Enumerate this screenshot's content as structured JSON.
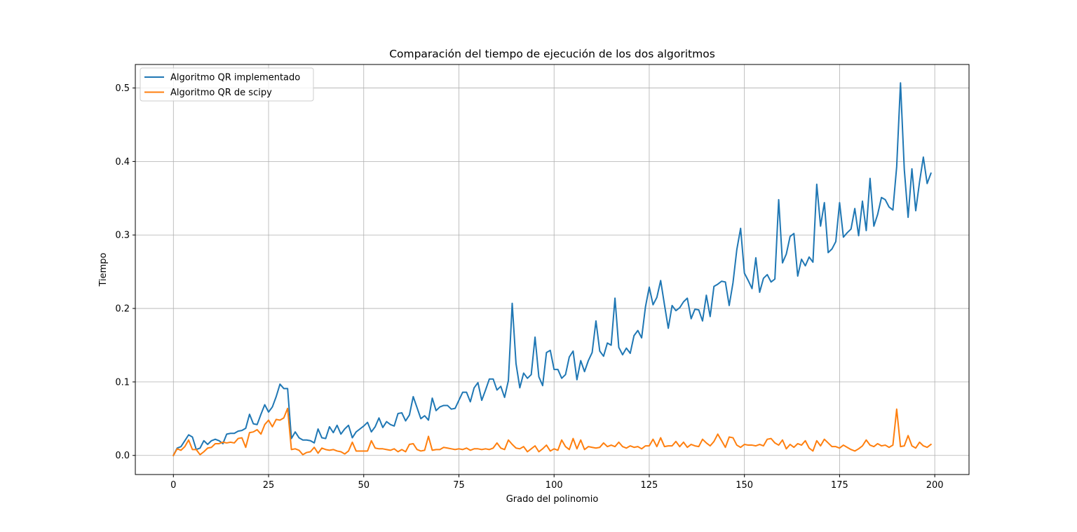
{
  "chart_data": {
    "type": "line",
    "title": "Comparación del tiempo de ejecución de los dos algoritmos",
    "xlabel": "Grado del polinomio",
    "ylabel": "Tiempo",
    "xlim": [
      -10,
      209
    ],
    "ylim": [
      -0.026,
      0.532
    ],
    "xticks": [
      0,
      25,
      50,
      75,
      100,
      125,
      150,
      175,
      200
    ],
    "yticks": [
      0.0,
      0.1,
      0.2,
      0.3,
      0.4,
      0.5
    ],
    "xtick_labels": [
      "0",
      "25",
      "50",
      "75",
      "100",
      "125",
      "150",
      "175",
      "200"
    ],
    "ytick_labels": [
      "0.0",
      "0.1",
      "0.2",
      "0.3",
      "0.4",
      "0.5"
    ],
    "grid": true,
    "legend_position": "top-left",
    "series": [
      {
        "name": "Algoritmo QR implementado",
        "color": "#1f77b4",
        "values": [
          0.0,
          0.01,
          0.012,
          0.02,
          0.028,
          0.025,
          0.008,
          0.01,
          0.02,
          0.015,
          0.02,
          0.022,
          0.02,
          0.016,
          0.029,
          0.03,
          0.03,
          0.033,
          0.034,
          0.037,
          0.056,
          0.043,
          0.042,
          0.056,
          0.069,
          0.059,
          0.066,
          0.08,
          0.097,
          0.091,
          0.091,
          0.023,
          0.032,
          0.024,
          0.021,
          0.021,
          0.02,
          0.017,
          0.036,
          0.024,
          0.023,
          0.039,
          0.031,
          0.041,
          0.029,
          0.036,
          0.041,
          0.024,
          0.032,
          0.036,
          0.04,
          0.045,
          0.032,
          0.039,
          0.051,
          0.038,
          0.046,
          0.042,
          0.04,
          0.057,
          0.058,
          0.047,
          0.055,
          0.08,
          0.065,
          0.05,
          0.054,
          0.048,
          0.078,
          0.061,
          0.066,
          0.068,
          0.068,
          0.063,
          0.064,
          0.075,
          0.086,
          0.086,
          0.073,
          0.092,
          0.099,
          0.075,
          0.089,
          0.104,
          0.104,
          0.089,
          0.094,
          0.079,
          0.102,
          0.207,
          0.125,
          0.092,
          0.112,
          0.105,
          0.11,
          0.161,
          0.107,
          0.095,
          0.14,
          0.143,
          0.117,
          0.117,
          0.105,
          0.11,
          0.134,
          0.142,
          0.103,
          0.129,
          0.114,
          0.129,
          0.14,
          0.183,
          0.142,
          0.135,
          0.153,
          0.15,
          0.214,
          0.147,
          0.137,
          0.146,
          0.139,
          0.163,
          0.17,
          0.16,
          0.202,
          0.229,
          0.205,
          0.215,
          0.238,
          0.205,
          0.173,
          0.204,
          0.197,
          0.201,
          0.209,
          0.214,
          0.186,
          0.199,
          0.198,
          0.183,
          0.218,
          0.189,
          0.23,
          0.233,
          0.237,
          0.236,
          0.204,
          0.235,
          0.28,
          0.309,
          0.248,
          0.238,
          0.227,
          0.269,
          0.222,
          0.241,
          0.246,
          0.236,
          0.24,
          0.348,
          0.262,
          0.274,
          0.298,
          0.302,
          0.244,
          0.267,
          0.258,
          0.27,
          0.263,
          0.369,
          0.312,
          0.344,
          0.276,
          0.281,
          0.291,
          0.344,
          0.297,
          0.303,
          0.308,
          0.336,
          0.299,
          0.346,
          0.306,
          0.377,
          0.312,
          0.328,
          0.351,
          0.348,
          0.338,
          0.334,
          0.393,
          0.507,
          0.389,
          0.324,
          0.39,
          0.333,
          0.372,
          0.406,
          0.37,
          0.384
        ]
      },
      {
        "name": "Algoritmo QR de scipy",
        "color": "#ff7f0e",
        "values": [
          0.0,
          0.009,
          0.007,
          0.012,
          0.021,
          0.008,
          0.008,
          0.001,
          0.005,
          0.01,
          0.011,
          0.016,
          0.016,
          0.018,
          0.017,
          0.018,
          0.017,
          0.023,
          0.024,
          0.011,
          0.031,
          0.032,
          0.035,
          0.029,
          0.042,
          0.048,
          0.039,
          0.049,
          0.048,
          0.051,
          0.064,
          0.008,
          0.009,
          0.007,
          0.001,
          0.004,
          0.005,
          0.011,
          0.003,
          0.01,
          0.008,
          0.007,
          0.008,
          0.006,
          0.005,
          0.002,
          0.006,
          0.018,
          0.006,
          0.006,
          0.006,
          0.006,
          0.02,
          0.01,
          0.009,
          0.009,
          0.008,
          0.007,
          0.009,
          0.005,
          0.008,
          0.005,
          0.015,
          0.016,
          0.008,
          0.006,
          0.007,
          0.026,
          0.007,
          0.008,
          0.008,
          0.011,
          0.01,
          0.009,
          0.008,
          0.009,
          0.008,
          0.01,
          0.007,
          0.009,
          0.009,
          0.008,
          0.009,
          0.008,
          0.01,
          0.017,
          0.01,
          0.008,
          0.021,
          0.015,
          0.01,
          0.009,
          0.012,
          0.005,
          0.009,
          0.013,
          0.005,
          0.009,
          0.014,
          0.006,
          0.009,
          0.007,
          0.021,
          0.012,
          0.008,
          0.023,
          0.009,
          0.021,
          0.008,
          0.012,
          0.011,
          0.01,
          0.011,
          0.017,
          0.012,
          0.014,
          0.012,
          0.018,
          0.012,
          0.01,
          0.013,
          0.011,
          0.012,
          0.009,
          0.013,
          0.013,
          0.022,
          0.012,
          0.024,
          0.012,
          0.013,
          0.013,
          0.019,
          0.012,
          0.018,
          0.011,
          0.015,
          0.013,
          0.012,
          0.022,
          0.017,
          0.013,
          0.019,
          0.029,
          0.02,
          0.011,
          0.025,
          0.024,
          0.014,
          0.011,
          0.015,
          0.014,
          0.014,
          0.013,
          0.015,
          0.013,
          0.022,
          0.023,
          0.017,
          0.014,
          0.021,
          0.009,
          0.015,
          0.011,
          0.016,
          0.014,
          0.02,
          0.01,
          0.006,
          0.02,
          0.013,
          0.022,
          0.017,
          0.012,
          0.012,
          0.01,
          0.014,
          0.011,
          0.008,
          0.006,
          0.009,
          0.013,
          0.021,
          0.014,
          0.012,
          0.016,
          0.013,
          0.014,
          0.011,
          0.014,
          0.063,
          0.012,
          0.013,
          0.027,
          0.013,
          0.01,
          0.018,
          0.013,
          0.011,
          0.015
        ]
      }
    ]
  }
}
